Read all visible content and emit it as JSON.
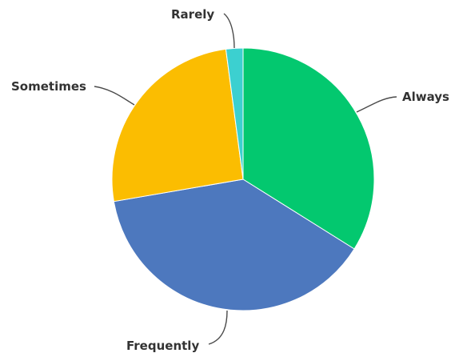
{
  "chart_data": {
    "type": "pie",
    "title": "",
    "start_angle_deg": 0,
    "direction": "clockwise",
    "slices": [
      {
        "label": "Always",
        "value": 33.9,
        "color": "#03c86f"
      },
      {
        "label": "Frequently",
        "value": 38.4,
        "color": "#4d78be"
      },
      {
        "label": "Sometimes",
        "value": 25.6,
        "color": "#fbbd01"
      },
      {
        "label": "Rarely",
        "value": 2.1,
        "color": "#3cd0d0"
      }
    ],
    "legend": "none",
    "labels_position": "outside-with-leader-lines"
  }
}
